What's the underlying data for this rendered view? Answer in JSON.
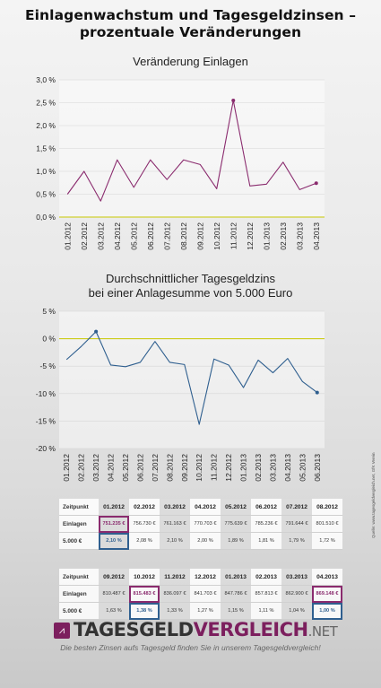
{
  "page": {
    "title_line1": "Einlagenwachstum und Tagesgeldzinsen –",
    "title_line2": "prozentuale Veränderungen",
    "brand": {
      "name_part1": "TAGESGELD",
      "name_part2": "VERGLEICH",
      "name_suffix": ".NET",
      "icon": "chart-line-icon",
      "color": "#7c1f5e"
    },
    "tagline": "Die besten Zinsen aufs Tagesgeld finden Sie in unserem Tagesgeldvergleich!",
    "source": "Quelle: www.tagesgeldvergleich.net, GfK Verein"
  },
  "chart_data": [
    {
      "type": "line",
      "title": "Veränderung Einlagen",
      "x": [
        "01.2012",
        "02.2012",
        "03.2012",
        "04.2012",
        "05.2012",
        "06.2012",
        "07.2012",
        "08.2012",
        "09.2012",
        "10.2012",
        "11.2012",
        "12.2012",
        "01.2013",
        "02.2013",
        "03.2013",
        "04.2013"
      ],
      "series": [
        {
          "values": [
            0.5,
            1.0,
            0.35,
            1.25,
            0.65,
            1.25,
            0.82,
            1.25,
            1.15,
            0.62,
            2.55,
            0.68,
            0.72,
            1.2,
            0.6,
            0.74
          ],
          "color": "#8a2b6e"
        }
      ],
      "yticks": [
        "3,0 %",
        "2,5 %",
        "2,0 %",
        "1,5 %",
        "1,0 %",
        "0,5 %",
        "0,0 %"
      ],
      "ylim": [
        0,
        3
      ],
      "grid": true,
      "baseline_color": "#c8c800"
    },
    {
      "type": "line",
      "title_line1": "Durchschnittlicher Tagesgeldzins",
      "title_line2": "bei einer Anlagesumme von 5.000 Euro",
      "x": [
        "01.2012",
        "02.2012",
        "03.2012",
        "04.2012",
        "05.2012",
        "06.2012",
        "07.2012",
        "08.2012",
        "09.2012",
        "10.2012",
        "11.2012",
        "12.2012",
        "01.2013",
        "02.2013",
        "03.2013",
        "04.2013",
        "05.2013",
        "06.2013"
      ],
      "series": [
        {
          "values": [
            -3.8,
            -1.4,
            1.3,
            -4.8,
            -5.1,
            -4.3,
            -0.5,
            -4.3,
            -4.7,
            -15.6,
            -3.7,
            -4.8,
            -8.9,
            -3.9,
            -6.2,
            -3.6,
            -7.8,
            -9.8
          ],
          "color": "#2f5f8f"
        }
      ],
      "yticks": [
        "5 %",
        "0 %",
        "-5 %",
        "-10 %",
        "-15 %",
        "-20 %"
      ],
      "ylim": [
        -20,
        5
      ],
      "grid": true,
      "baseline_color": "#c8c800"
    },
    {
      "type": "table",
      "header_label": "Zeitpunkt",
      "row1_label": "Einlagen",
      "row2_label": "5.000 €",
      "columns": [
        "01.2012",
        "02.2012",
        "03.2012",
        "04.2012",
        "05.2012",
        "06.2012",
        "07.2012",
        "08.2012"
      ],
      "row1": [
        "751.235 €",
        "756.730 €",
        "761.163 €",
        "770.703 €",
        "775.639 €",
        "785.236 €",
        "791.644 €",
        "801.510 €"
      ],
      "row2": [
        "2,10 %",
        "2,08 %",
        "2,10 %",
        "2,00 %",
        "1,89 %",
        "1,81 %",
        "1,79 %",
        "1,72 %"
      ]
    },
    {
      "type": "table",
      "header_label": "Zeitpunkt",
      "row1_label": "Einlagen",
      "row2_label": "5.000 €",
      "columns": [
        "09.2012",
        "10.2012",
        "11.2012",
        "12.2012",
        "01.2013",
        "02.2013",
        "03.2013",
        "04.2013"
      ],
      "row1": [
        "810.487 €",
        "815.483 €",
        "836.097 €",
        "841.703 €",
        "847.786 €",
        "857.813 €",
        "862.900 €",
        "869.148 €"
      ],
      "row2": [
        "1,63 %",
        "1,38 %",
        "1,33 %",
        "1,27 %",
        "1,15 %",
        "1,11 %",
        "1,04 %",
        "1,00 %"
      ]
    }
  ]
}
